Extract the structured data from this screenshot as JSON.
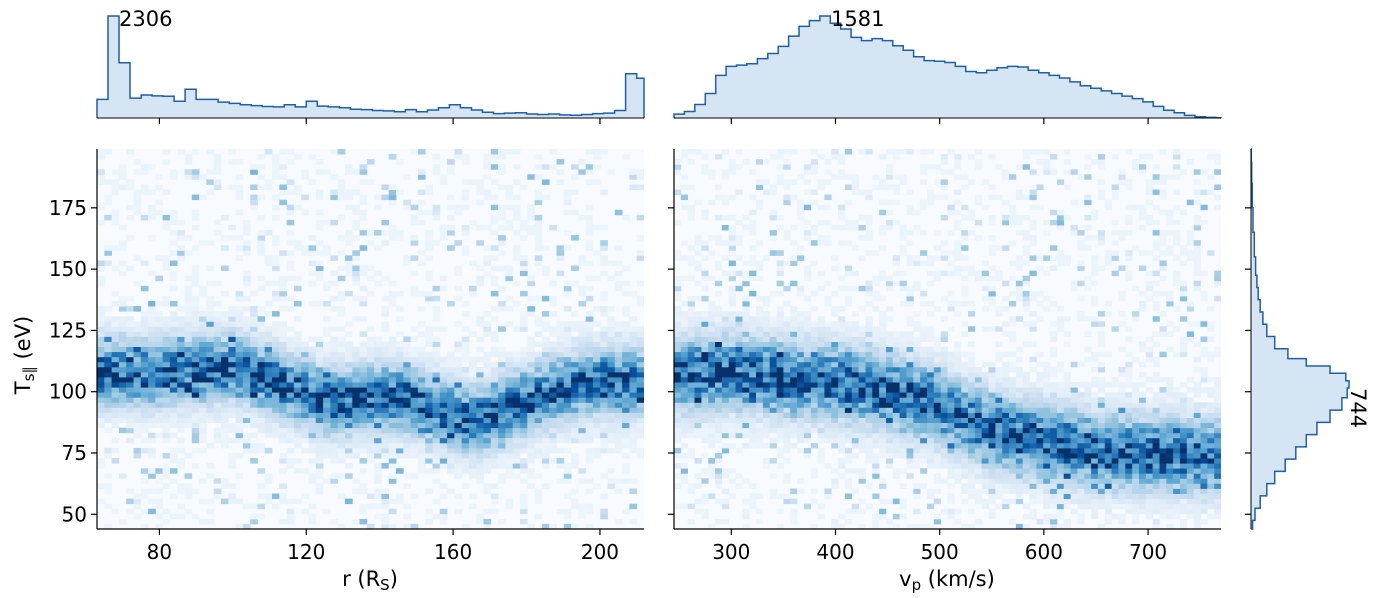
{
  "chart_data": [
    {
      "type": "heatmap",
      "panel": "left",
      "xlabel": "r (R",
      "xlabel_sub": "S",
      "xlabel_end": ")",
      "ylabel": "T",
      "ylabel_sub": "s∥",
      "ylabel_end": " (eV)",
      "xlim": [
        63,
        212
      ],
      "ylim": [
        44,
        199
      ],
      "xticks": [
        "80",
        "120",
        "160",
        "200"
      ],
      "xtick_values": [
        80,
        120,
        160,
        200
      ],
      "yticks": [
        "50",
        "75",
        "100",
        "125",
        "150",
        "175"
      ],
      "ytick_values": [
        50,
        75,
        100,
        125,
        150,
        175
      ],
      "colormap": [
        "#f7fbff",
        "#08306b"
      ],
      "ridge": [
        [
          63,
          108
        ],
        [
          80,
          108
        ],
        [
          100,
          110
        ],
        [
          112,
          104
        ],
        [
          125,
          96
        ],
        [
          145,
          98
        ],
        [
          165,
          88
        ],
        [
          180,
          96
        ],
        [
          195,
          104
        ],
        [
          212,
          104
        ]
      ]
    },
    {
      "type": "heatmap",
      "panel": "right",
      "xlabel": "v",
      "xlabel_sub": "p",
      "xlabel_end": " (km/s)",
      "xlim": [
        245,
        770
      ],
      "ylim": [
        44,
        199
      ],
      "xticks": [
        "300",
        "400",
        "500",
        "600",
        "700"
      ],
      "xtick_values": [
        300,
        400,
        500,
        600,
        700
      ],
      "colormap": [
        "#f7fbff",
        "#08306b"
      ],
      "ridge": [
        [
          245,
          107
        ],
        [
          300,
          108
        ],
        [
          400,
          104
        ],
        [
          450,
          100
        ],
        [
          500,
          94
        ],
        [
          550,
          84
        ],
        [
          600,
          80
        ],
        [
          650,
          76
        ],
        [
          700,
          75
        ],
        [
          750,
          74
        ]
      ]
    },
    {
      "type": "area",
      "panel": "top-left-histogram",
      "orientation": "vertical",
      "xlim": [
        63,
        212
      ],
      "peak_label": "2306",
      "peak_value": 2306,
      "x": [
        63,
        66,
        69,
        72,
        75,
        78,
        81,
        84,
        87,
        90,
        93,
        96,
        99,
        102,
        105,
        108,
        111,
        114,
        117,
        120,
        123,
        126,
        129,
        132,
        135,
        138,
        141,
        144,
        147,
        150,
        153,
        156,
        159,
        162,
        165,
        168,
        171,
        174,
        177,
        180,
        183,
        186,
        189,
        192,
        195,
        198,
        201,
        204,
        207,
        210
      ],
      "values": [
        420,
        2306,
        1250,
        450,
        520,
        500,
        490,
        380,
        650,
        420,
        420,
        360,
        330,
        300,
        280,
        260,
        250,
        300,
        250,
        380,
        270,
        250,
        230,
        200,
        190,
        170,
        160,
        140,
        190,
        140,
        180,
        230,
        300,
        230,
        180,
        130,
        100,
        110,
        120,
        90,
        80,
        90,
        70,
        60,
        80,
        100,
        110,
        170,
        1000,
        900
      ]
    },
    {
      "type": "area",
      "panel": "top-right-histogram",
      "orientation": "vertical",
      "xlim": [
        245,
        770
      ],
      "peak_label": "1581",
      "peak_value": 1581,
      "x": [
        245,
        255,
        265,
        275,
        285,
        295,
        305,
        315,
        325,
        335,
        345,
        355,
        365,
        375,
        385,
        395,
        405,
        415,
        425,
        435,
        445,
        455,
        465,
        475,
        485,
        495,
        505,
        515,
        525,
        535,
        545,
        555,
        565,
        575,
        585,
        595,
        605,
        615,
        625,
        635,
        645,
        655,
        665,
        675,
        685,
        695,
        705,
        715,
        725,
        735,
        745,
        755,
        765
      ],
      "values": [
        60,
        100,
        210,
        380,
        660,
        800,
        820,
        840,
        920,
        1000,
        1110,
        1270,
        1420,
        1510,
        1581,
        1470,
        1380,
        1250,
        1200,
        1230,
        1200,
        1120,
        1050,
        950,
        890,
        880,
        860,
        800,
        720,
        700,
        740,
        780,
        800,
        790,
        740,
        700,
        660,
        620,
        560,
        500,
        460,
        420,
        380,
        340,
        300,
        250,
        180,
        120,
        80,
        40,
        20,
        10,
        5
      ]
    },
    {
      "type": "area",
      "panel": "right-side-histogram",
      "orientation": "horizontal",
      "ylim": [
        44,
        199
      ],
      "peak_label": "744",
      "peak_value": 744,
      "y": [
        45,
        50,
        55,
        60,
        65,
        70,
        75,
        80,
        85,
        90,
        95,
        100,
        103,
        106,
        109,
        112,
        115,
        120,
        125,
        130,
        135,
        140,
        145,
        150,
        160,
        170,
        180,
        190,
        197
      ],
      "values": [
        12,
        30,
        70,
        120,
        180,
        260,
        340,
        420,
        500,
        600,
        690,
        730,
        744,
        720,
        600,
        420,
        280,
        180,
        120,
        90,
        70,
        55,
        45,
        35,
        25,
        15,
        10,
        5,
        2
      ]
    }
  ]
}
